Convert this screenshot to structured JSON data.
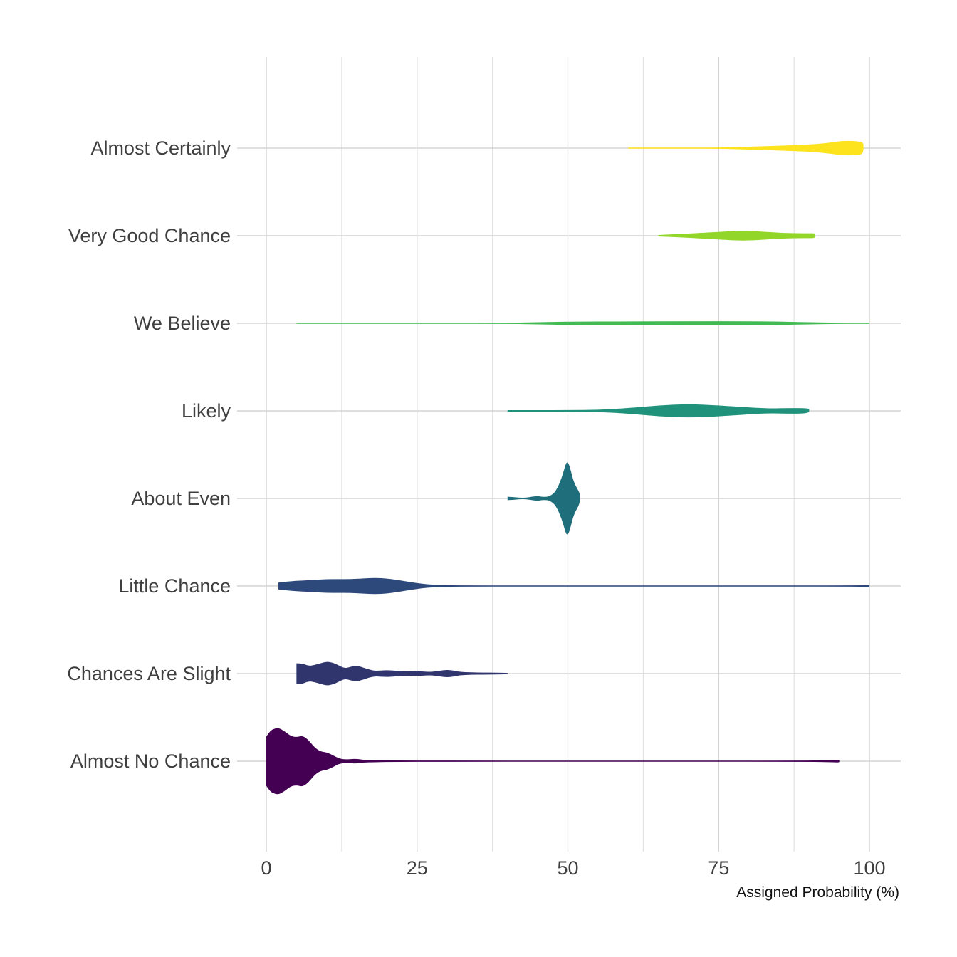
{
  "chart_data": {
    "type": "violin",
    "xlabel": "Assigned Probability (%)",
    "xlim": [
      0,
      105
    ],
    "xticks": [
      0,
      25,
      50,
      75,
      100
    ],
    "xtick_labels": [
      "0",
      "25",
      "50",
      "75",
      "100"
    ],
    "minor_gridlines_x": [
      12.5,
      37.5,
      62.5,
      87.5
    ],
    "grid": true,
    "legend": "none",
    "categories": [
      "Almost No Chance",
      "Chances Are Slight",
      "Little Chance",
      "About Even",
      "Likely",
      "We Believe",
      "Very Good Chance",
      "Almost Certainly"
    ],
    "series": [
      {
        "category": "Almost No Chance",
        "color": "#440154",
        "density": [
          [
            0,
            0.72
          ],
          [
            0.5,
            0.85
          ],
          [
            1,
            0.93
          ],
          [
            2,
            0.98
          ],
          [
            3,
            0.88
          ],
          [
            4,
            0.74
          ],
          [
            5,
            0.7
          ],
          [
            6,
            0.75
          ],
          [
            7,
            0.62
          ],
          [
            8,
            0.4
          ],
          [
            9,
            0.28
          ],
          [
            10,
            0.26
          ],
          [
            11,
            0.18
          ],
          [
            12,
            0.08
          ],
          [
            13,
            0.05
          ],
          [
            14,
            0.06
          ],
          [
            15,
            0.07
          ],
          [
            16,
            0.04
          ],
          [
            18,
            0.03
          ],
          [
            20,
            0.02
          ],
          [
            30,
            0.015
          ],
          [
            50,
            0.015
          ],
          [
            70,
            0.015
          ],
          [
            90,
            0.015
          ],
          [
            94,
            0.03
          ],
          [
            95,
            0.04
          ],
          [
            95.01,
            0
          ]
        ]
      },
      {
        "category": "Chances Are Slight",
        "color": "#31356E",
        "density": [
          [
            5,
            0.3
          ],
          [
            6,
            0.3
          ],
          [
            7,
            0.22
          ],
          [
            8,
            0.25
          ],
          [
            9,
            0.3
          ],
          [
            10,
            0.35
          ],
          [
            11,
            0.32
          ],
          [
            12,
            0.24
          ],
          [
            13,
            0.15
          ],
          [
            14,
            0.2
          ],
          [
            15,
            0.23
          ],
          [
            16,
            0.18
          ],
          [
            17,
            0.12
          ],
          [
            18,
            0.08
          ],
          [
            19,
            0.09
          ],
          [
            20,
            0.1
          ],
          [
            21,
            0.09
          ],
          [
            22,
            0.07
          ],
          [
            24,
            0.06
          ],
          [
            25,
            0.07
          ],
          [
            26,
            0.06
          ],
          [
            27,
            0.05
          ],
          [
            28,
            0.06
          ],
          [
            29,
            0.09
          ],
          [
            30,
            0.11
          ],
          [
            31,
            0.09
          ],
          [
            32,
            0.05
          ],
          [
            34,
            0.035
          ],
          [
            36,
            0.03
          ],
          [
            38,
            0.025
          ],
          [
            40,
            0.02
          ],
          [
            40.01,
            0
          ]
        ]
      },
      {
        "category": "Little Chance",
        "color": "#2D497B",
        "density": [
          [
            2,
            0.1
          ],
          [
            4,
            0.14
          ],
          [
            6,
            0.16
          ],
          [
            8,
            0.18
          ],
          [
            10,
            0.2
          ],
          [
            12,
            0.2
          ],
          [
            14,
            0.2
          ],
          [
            16,
            0.22
          ],
          [
            18,
            0.24
          ],
          [
            20,
            0.22
          ],
          [
            22,
            0.17
          ],
          [
            24,
            0.11
          ],
          [
            26,
            0.06
          ],
          [
            28,
            0.035
          ],
          [
            30,
            0.02
          ],
          [
            35,
            0.012
          ],
          [
            40,
            0.01
          ],
          [
            60,
            0.01
          ],
          [
            80,
            0.01
          ],
          [
            95,
            0.01
          ],
          [
            99,
            0.02
          ],
          [
            100,
            0.025
          ],
          [
            100.01,
            0
          ]
        ]
      },
      {
        "category": "About Even",
        "color": "#1F6E7B",
        "density": [
          [
            40,
            0.05
          ],
          [
            41,
            0.04
          ],
          [
            42,
            0.02
          ],
          [
            43,
            0.02
          ],
          [
            44,
            0.05
          ],
          [
            45,
            0.07
          ],
          [
            46,
            0.04
          ],
          [
            47,
            0.06
          ],
          [
            48,
            0.2
          ],
          [
            49,
            0.6
          ],
          [
            49.7,
            1.05
          ],
          [
            50,
            1.05
          ],
          [
            50.3,
            0.95
          ],
          [
            51,
            0.45
          ],
          [
            52,
            0.16
          ],
          [
            52.01,
            0
          ]
        ]
      },
      {
        "category": "Likely",
        "color": "#20927B",
        "density": [
          [
            40,
            0.02
          ],
          [
            45,
            0.02
          ],
          [
            50,
            0.02
          ],
          [
            55,
            0.03
          ],
          [
            60,
            0.08
          ],
          [
            65,
            0.16
          ],
          [
            70,
            0.2
          ],
          [
            75,
            0.16
          ],
          [
            80,
            0.1
          ],
          [
            82,
            0.08
          ],
          [
            84,
            0.07
          ],
          [
            86,
            0.08
          ],
          [
            90,
            0.08
          ],
          [
            90.01,
            0
          ]
        ]
      },
      {
        "category": "We Believe",
        "color": "#42BA52",
        "density": [
          [
            5,
            0.01
          ],
          [
            20,
            0.01
          ],
          [
            30,
            0.01
          ],
          [
            40,
            0.015
          ],
          [
            45,
            0.03
          ],
          [
            50,
            0.05
          ],
          [
            60,
            0.055
          ],
          [
            70,
            0.06
          ],
          [
            80,
            0.06
          ],
          [
            85,
            0.05
          ],
          [
            90,
            0.03
          ],
          [
            95,
            0.015
          ],
          [
            99,
            0.01
          ],
          [
            100,
            0.01
          ],
          [
            100.01,
            0
          ]
        ]
      },
      {
        "category": "Very Good Chance",
        "color": "#93D62A",
        "density": [
          [
            65,
            0.02
          ],
          [
            70,
            0.06
          ],
          [
            75,
            0.11
          ],
          [
            78,
            0.14
          ],
          [
            80,
            0.14
          ],
          [
            83,
            0.11
          ],
          [
            86,
            0.08
          ],
          [
            88,
            0.07
          ],
          [
            90,
            0.07
          ],
          [
            91,
            0.07
          ],
          [
            91.01,
            0
          ]
        ]
      },
      {
        "category": "Almost Certainly",
        "color": "#FDE21E",
        "density": [
          [
            60,
            0.015
          ],
          [
            65,
            0.01
          ],
          [
            70,
            0.01
          ],
          [
            75,
            0.015
          ],
          [
            80,
            0.04
          ],
          [
            85,
            0.07
          ],
          [
            90,
            0.1
          ],
          [
            93,
            0.15
          ],
          [
            95,
            0.2
          ],
          [
            96,
            0.21
          ],
          [
            97,
            0.21
          ],
          [
            98,
            0.2
          ],
          [
            99,
            0.17
          ],
          [
            99.01,
            0
          ]
        ]
      }
    ]
  }
}
